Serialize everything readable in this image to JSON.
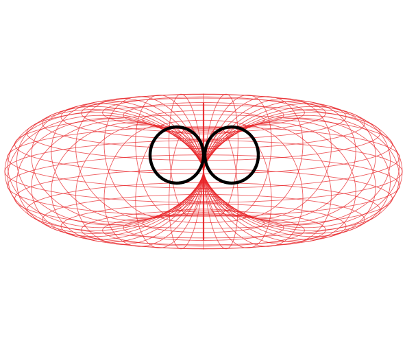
{
  "figure": {
    "wireframe_color": "#e8262a",
    "cross_section_color": "#000000",
    "background_color": "#ffffff"
  }
}
